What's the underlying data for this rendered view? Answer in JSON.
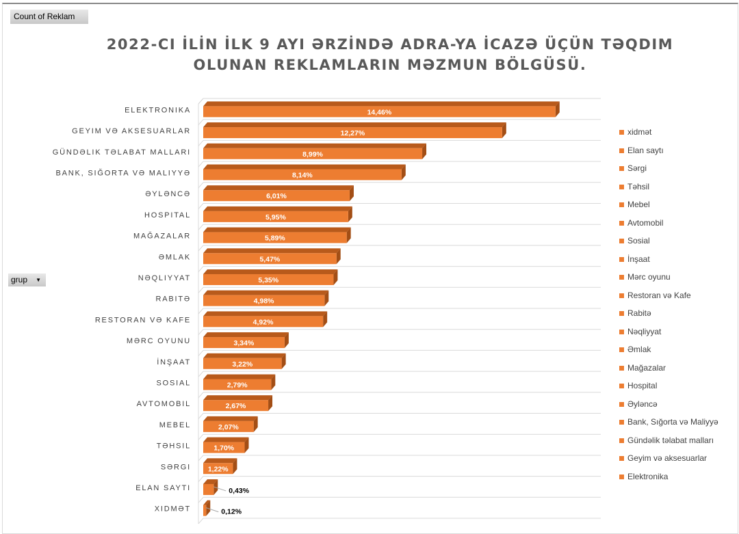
{
  "pivot_buttons": {
    "value_field": "Count of Reklam",
    "row_field": "grup"
  },
  "colors": {
    "bar": "#ED7D31",
    "bar_dark": "#B85A1B",
    "grid": "#d9d9d9"
  },
  "chart_data": {
    "type": "bar",
    "orientation": "horizontal-3d",
    "title": "2022-CI İLİN İLK 9 AYI ƏRZİNDƏ ADRA-YA İCAZƏ ÜÇÜN TƏQDIM OLUNAN REKLAMLARIN MƏZMUN BÖLGÜSÜ.",
    "title_lines": [
      "2022-CI İLİN İLK 9 AYI ƏRZİNDƏ ADRA-YA İCAZƏ ÜÇÜN TƏQDIM",
      "OLUNAN REKLAMLARIN MƏZMUN BÖLGÜSÜ."
    ],
    "categories": [
      "ELEKTRONIKA",
      "GEYIM VƏ AKSESUARLAR",
      "GÜNDƏLIK TƏLABAT MALLARI",
      "BANK, SIĞORTA VƏ MALIYYƏ",
      "ƏYLƏNCƏ",
      "HOSPITAL",
      "MAĞAZALAR",
      "ƏMLAK",
      "NƏQLIYYAT",
      "RABITƏ",
      "RESTORAN VƏ KAFE",
      "MƏRC OYUNU",
      "İNŞAAT",
      "SOSIAL",
      "AVTOMOBIL",
      "MEBEL",
      "TƏHSIL",
      "SƏRGI",
      "ELAN SAYTI",
      "XIDMƏT"
    ],
    "values": [
      14.46,
      12.27,
      8.99,
      8.14,
      6.01,
      5.95,
      5.89,
      5.47,
      5.35,
      4.98,
      4.92,
      3.34,
      3.22,
      2.79,
      2.67,
      2.07,
      1.7,
      1.22,
      0.43,
      0.12
    ],
    "data_labels": [
      "14,46%",
      "12,27%",
      "8,99%",
      "8,14%",
      "6,01%",
      "5,95%",
      "5,89%",
      "5,47%",
      "5,35%",
      "4,98%",
      "4,92%",
      "3,34%",
      "3,22%",
      "2,79%",
      "2,67%",
      "2,07%",
      "1,70%",
      "1,22%",
      "0,43%",
      "0,12%"
    ],
    "xlim": [
      0,
      16.5
    ],
    "legend": {
      "position": "right",
      "entries": [
        "xidmət",
        "Elan saytı",
        "Sərgi",
        "Təhsil",
        "Mebel",
        "Avtomobil",
        "Sosial",
        "İnşaat",
        "Mərc oyunu",
        "Restoran və Kafe",
        "Rabitə",
        "Nəqliyyat",
        "Əmlak",
        "Mağazalar",
        "Hospital",
        "Əyləncə",
        "Bank, Sığorta və Maliyyə",
        "Gündəlik təlabat malları",
        "Geyim və aksesuarlar",
        "Elektronika"
      ]
    }
  }
}
